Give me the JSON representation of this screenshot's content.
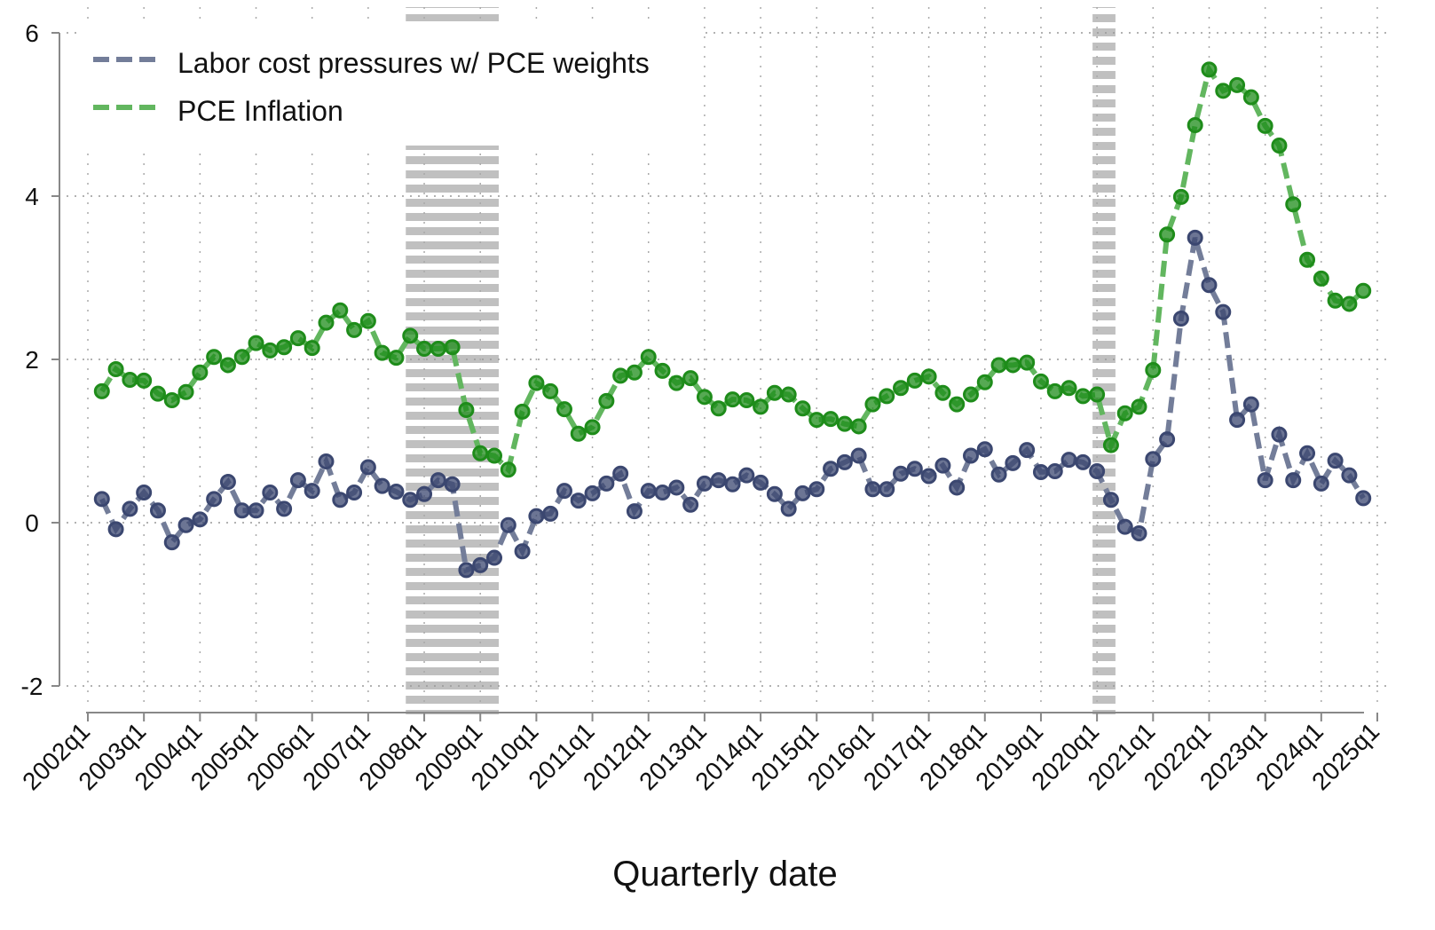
{
  "chart_data": {
    "type": "line",
    "title": "",
    "xlabel": "Quarterly date",
    "ylabel": "",
    "ylim": [
      -2,
      6
    ],
    "yticks": [
      -2,
      0,
      2,
      4,
      6
    ],
    "xlim": [
      "2002q1",
      "2025q1"
    ],
    "xticks": [
      "2002q1",
      "2003q1",
      "2004q1",
      "2005q1",
      "2006q1",
      "2007q1",
      "2008q1",
      "2009q1",
      "2010q1",
      "2011q1",
      "2012q1",
      "2013q1",
      "2014q1",
      "2015q1",
      "2016q1",
      "2017q1",
      "2018q1",
      "2019q1",
      "2020q1",
      "2021q1",
      "2022q1",
      "2023q1",
      "2024q1",
      "2025q1"
    ],
    "grid": true,
    "legend_position": "top-left",
    "first_quarter": "2002q2",
    "last_quarter": "2024q4",
    "shaded_periods": [
      {
        "start": "2007q4",
        "end": "2009q2"
      },
      {
        "start": "2020q1",
        "end": "2020q2"
      }
    ],
    "series": [
      {
        "name": "Labor cost pressures w/ PCE weights",
        "color": "#3b4770",
        "line_color": "#737d99",
        "values": [
          0.29,
          -0.08,
          0.17,
          0.37,
          0.15,
          -0.24,
          -0.03,
          0.04,
          0.29,
          0.5,
          0.15,
          0.15,
          0.37,
          0.17,
          0.52,
          0.39,
          0.75,
          0.28,
          0.37,
          0.68,
          0.45,
          0.38,
          0.28,
          0.35,
          0.52,
          0.47,
          -0.58,
          -0.52,
          -0.43,
          -0.03,
          -0.35,
          0.08,
          0.11,
          0.39,
          0.27,
          0.36,
          0.48,
          0.6,
          0.14,
          0.39,
          0.37,
          0.43,
          0.22,
          0.48,
          0.52,
          0.47,
          0.58,
          0.49,
          0.35,
          0.17,
          0.36,
          0.41,
          0.66,
          0.74,
          0.82,
          0.41,
          0.41,
          0.6,
          0.66,
          0.57,
          0.7,
          0.43,
          0.82,
          0.9,
          0.59,
          0.73,
          0.89,
          0.62,
          0.63,
          0.77,
          0.74,
          0.63,
          0.28,
          -0.05,
          -0.13,
          0.78,
          1.02,
          2.5,
          3.49,
          2.91,
          2.58,
          1.26,
          1.45,
          0.52,
          1.08,
          0.52,
          0.85,
          0.48,
          0.76,
          0.58,
          0.3
        ]
      },
      {
        "name": "PCE Inflation",
        "color": "#1e8c1a",
        "line_color": "#62b65f",
        "values": [
          1.61,
          1.88,
          1.75,
          1.74,
          1.58,
          1.5,
          1.6,
          1.84,
          2.03,
          1.93,
          2.03,
          2.2,
          2.11,
          2.15,
          2.26,
          2.14,
          2.45,
          2.6,
          2.36,
          2.47,
          2.08,
          2.02,
          2.29,
          2.13,
          2.13,
          2.15,
          1.38,
          0.85,
          0.82,
          0.65,
          1.36,
          1.71,
          1.61,
          1.39,
          1.09,
          1.17,
          1.49,
          1.8,
          1.84,
          2.03,
          1.86,
          1.71,
          1.77,
          1.54,
          1.4,
          1.51,
          1.5,
          1.42,
          1.59,
          1.57,
          1.4,
          1.26,
          1.27,
          1.21,
          1.18,
          1.45,
          1.55,
          1.65,
          1.74,
          1.79,
          1.59,
          1.45,
          1.57,
          1.72,
          1.93,
          1.93,
          1.96,
          1.73,
          1.61,
          1.65,
          1.55,
          1.57,
          0.95,
          1.34,
          1.42,
          1.87,
          3.53,
          3.99,
          4.87,
          5.55,
          5.29,
          5.36,
          5.21,
          4.86,
          4.62,
          3.9,
          3.22,
          2.99,
          2.72,
          2.68,
          2.84
        ]
      }
    ]
  }
}
